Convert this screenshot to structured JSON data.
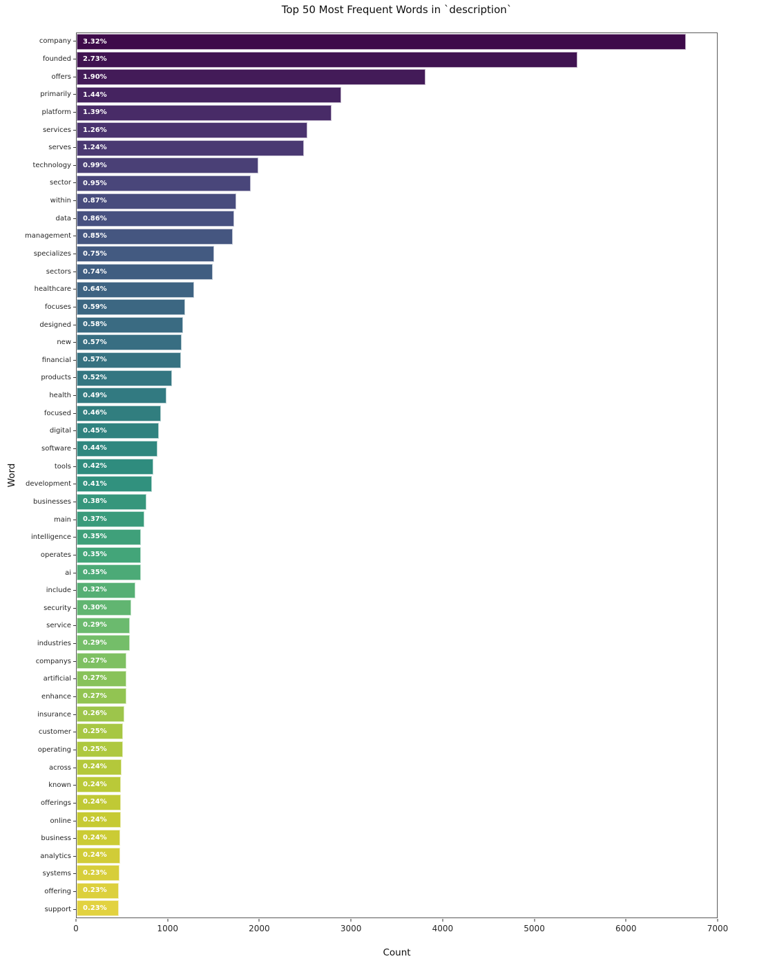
{
  "chart_data": {
    "type": "bar",
    "orientation": "horizontal",
    "title": "Top 50 Most Frequent Words in `description`",
    "xlabel": "Count",
    "ylabel": "Word",
    "xlim": [
      0,
      7000
    ],
    "xticks": [
      0,
      1000,
      2000,
      3000,
      4000,
      5000,
      6000,
      7000
    ],
    "grid": false,
    "legend": false,
    "palette": "viridis",
    "viridis_anchors": [
      "#440154",
      "#482878",
      "#3e4a89",
      "#31688e",
      "#26828e",
      "#1f9e89",
      "#35b779",
      "#6dcd59",
      "#b5de2b",
      "#dfe318",
      "#fde725"
    ],
    "desaturation": 0.75,
    "bar_label_color": "#ffffff",
    "axis_text_color": "#262626",
    "bars": [
      {
        "word": "company",
        "count": 6660,
        "pct": "3.32%"
      },
      {
        "word": "founded",
        "count": 5475,
        "pct": "2.73%"
      },
      {
        "word": "offers",
        "count": 3810,
        "pct": "1.90%"
      },
      {
        "word": "primarily",
        "count": 2890,
        "pct": "1.44%"
      },
      {
        "word": "platform",
        "count": 2785,
        "pct": "1.39%"
      },
      {
        "word": "services",
        "count": 2525,
        "pct": "1.26%"
      },
      {
        "word": "serves",
        "count": 2485,
        "pct": "1.24%"
      },
      {
        "word": "technology",
        "count": 1985,
        "pct": "0.99%"
      },
      {
        "word": "sector",
        "count": 1900,
        "pct": "0.95%"
      },
      {
        "word": "within",
        "count": 1745,
        "pct": "0.87%"
      },
      {
        "word": "data",
        "count": 1725,
        "pct": "0.86%"
      },
      {
        "word": "management",
        "count": 1705,
        "pct": "0.85%"
      },
      {
        "word": "specializes",
        "count": 1505,
        "pct": "0.75%"
      },
      {
        "word": "sectors",
        "count": 1485,
        "pct": "0.74%"
      },
      {
        "word": "healthcare",
        "count": 1285,
        "pct": "0.64%"
      },
      {
        "word": "focuses",
        "count": 1185,
        "pct": "0.59%"
      },
      {
        "word": "designed",
        "count": 1165,
        "pct": "0.58%"
      },
      {
        "word": "new",
        "count": 1145,
        "pct": "0.57%"
      },
      {
        "word": "financial",
        "count": 1140,
        "pct": "0.57%"
      },
      {
        "word": "products",
        "count": 1045,
        "pct": "0.52%"
      },
      {
        "word": "health",
        "count": 985,
        "pct": "0.49%"
      },
      {
        "word": "focused",
        "count": 925,
        "pct": "0.46%"
      },
      {
        "word": "digital",
        "count": 900,
        "pct": "0.45%"
      },
      {
        "word": "software",
        "count": 885,
        "pct": "0.44%"
      },
      {
        "word": "tools",
        "count": 840,
        "pct": "0.42%"
      },
      {
        "word": "development",
        "count": 825,
        "pct": "0.41%"
      },
      {
        "word": "businesses",
        "count": 765,
        "pct": "0.38%"
      },
      {
        "word": "main",
        "count": 740,
        "pct": "0.37%"
      },
      {
        "word": "intelligence",
        "count": 706,
        "pct": "0.35%"
      },
      {
        "word": "operates",
        "count": 703,
        "pct": "0.35%"
      },
      {
        "word": "ai",
        "count": 700,
        "pct": "0.35%"
      },
      {
        "word": "include",
        "count": 640,
        "pct": "0.32%"
      },
      {
        "word": "security",
        "count": 600,
        "pct": "0.30%"
      },
      {
        "word": "service",
        "count": 585,
        "pct": "0.29%"
      },
      {
        "word": "industries",
        "count": 580,
        "pct": "0.29%"
      },
      {
        "word": "companys",
        "count": 545,
        "pct": "0.27%"
      },
      {
        "word": "artificial",
        "count": 543,
        "pct": "0.27%"
      },
      {
        "word": "enhance",
        "count": 540,
        "pct": "0.27%"
      },
      {
        "word": "insurance",
        "count": 520,
        "pct": "0.26%"
      },
      {
        "word": "customer",
        "count": 505,
        "pct": "0.25%"
      },
      {
        "word": "operating",
        "count": 503,
        "pct": "0.25%"
      },
      {
        "word": "across",
        "count": 488,
        "pct": "0.24%"
      },
      {
        "word": "known",
        "count": 485,
        "pct": "0.24%"
      },
      {
        "word": "offerings",
        "count": 483,
        "pct": "0.24%"
      },
      {
        "word": "online",
        "count": 480,
        "pct": "0.24%"
      },
      {
        "word": "business",
        "count": 478,
        "pct": "0.24%"
      },
      {
        "word": "analytics",
        "count": 475,
        "pct": "0.24%"
      },
      {
        "word": "systems",
        "count": 465,
        "pct": "0.23%"
      },
      {
        "word": "offering",
        "count": 462,
        "pct": "0.23%"
      },
      {
        "word": "support",
        "count": 460,
        "pct": "0.23%"
      }
    ]
  }
}
